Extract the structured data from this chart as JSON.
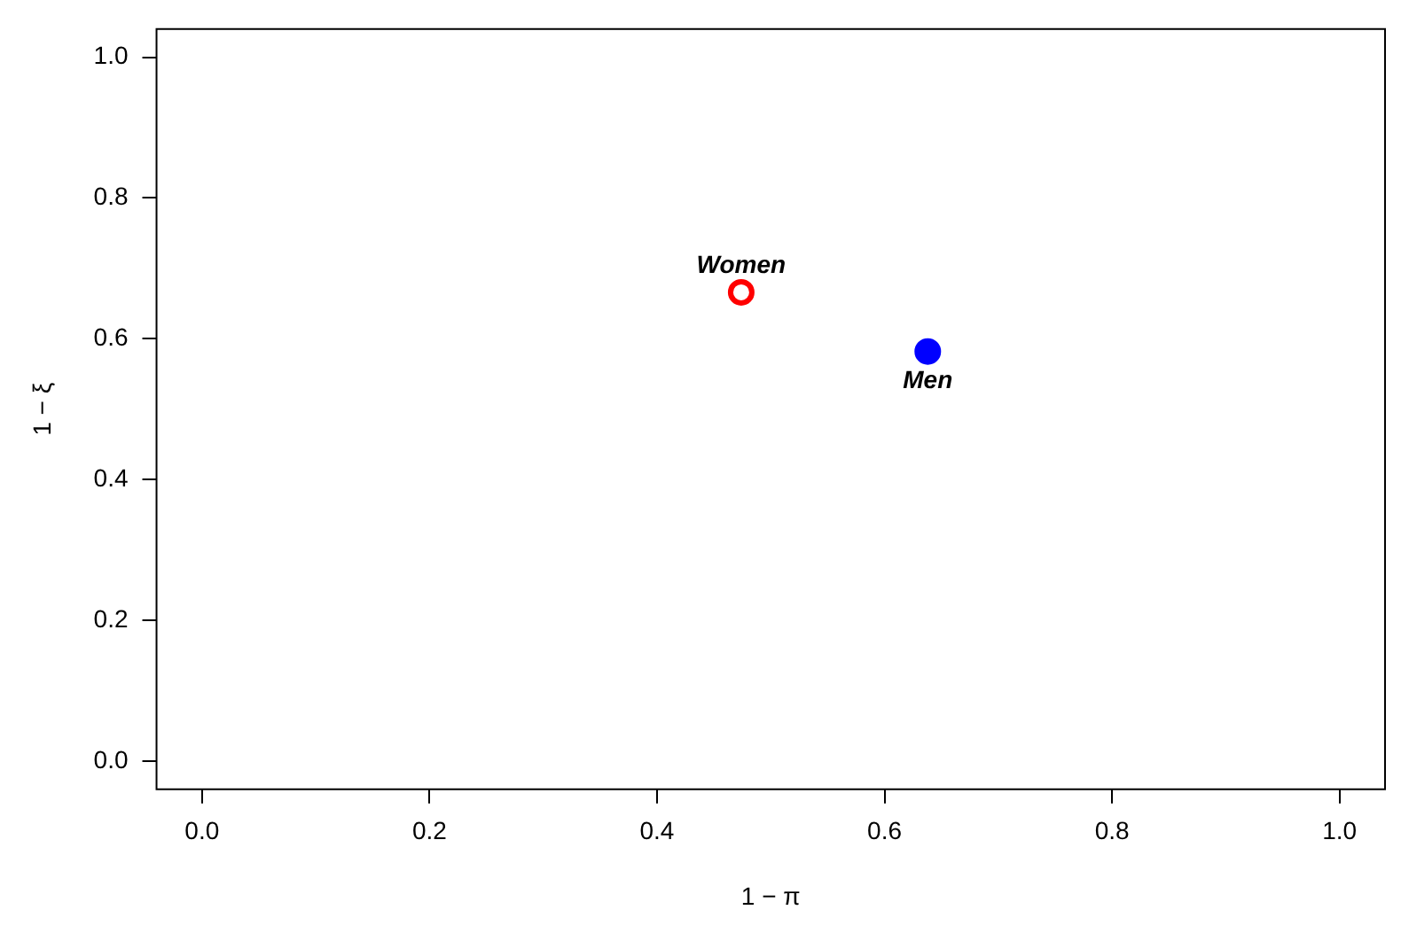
{
  "chart_data": {
    "type": "scatter",
    "xlabel": "1 − π",
    "ylabel": "1 − ξ",
    "xlim": [
      -0.04,
      1.04
    ],
    "ylim": [
      -0.04,
      1.04
    ],
    "xticks": [
      {
        "value": 0,
        "label": "0.0"
      },
      0.2,
      0.4,
      0.6,
      0.8,
      {
        "value": 1,
        "label": "1.0"
      }
    ],
    "yticks": [
      {
        "value": 0,
        "label": "0.0"
      },
      0.2,
      0.4,
      0.6,
      0.8,
      {
        "value": 1,
        "label": "1.0"
      }
    ],
    "grid": false,
    "legend": false,
    "marker": "circle",
    "series": [
      {
        "name": "Women",
        "color": "#ff0000",
        "x": [
          0.474
        ],
        "values": [
          0.666
        ]
      },
      {
        "name": "Men",
        "color": "#0000ff",
        "x": [
          0.638
        ],
        "values": [
          0.582
        ]
      }
    ]
  }
}
